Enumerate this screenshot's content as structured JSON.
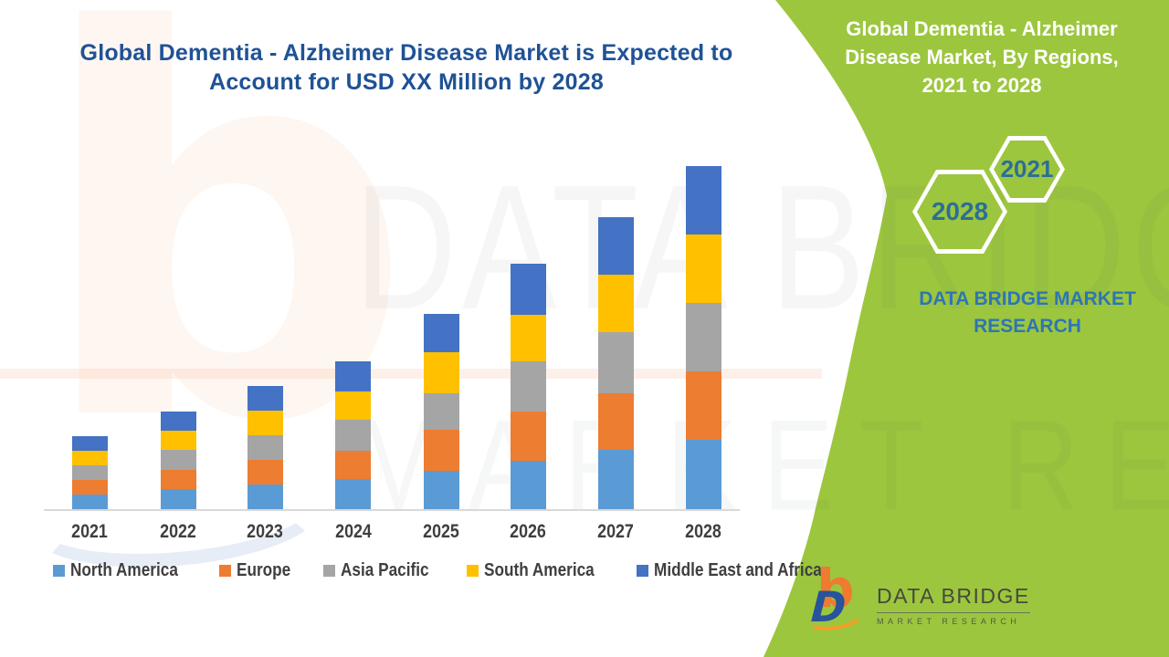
{
  "main_title": {
    "lines": [
      "Global Dementia - Alzheimer Disease Market is Expected to",
      "Account for USD XX Million by 2028"
    ],
    "color": "#1F5296"
  },
  "side_panel": {
    "background": "#9CC63E",
    "title_lines": [
      "Global Dementia - Alzheimer",
      "Disease Market, By Regions,",
      "2021 to 2028"
    ],
    "title_color": "#FFFFFF",
    "badges": [
      {
        "year": "2021"
      },
      {
        "year": "2028"
      }
    ],
    "badge_text_color": "#2C6E98",
    "brand_lines": [
      "DATA BRIDGE MARKET",
      "RESEARCH"
    ],
    "brand_color": "#2E75B6"
  },
  "watermark": {
    "line1": "DATA BRIDGE",
    "line2": "MARKET RESEARCH",
    "letter": "b"
  },
  "footer_logo": {
    "name": "DATA BRIDGE",
    "subname": "MARKET RESEARCH"
  },
  "chart_data": {
    "type": "bar",
    "stacked": true,
    "title": "Global Dementia - Alzheimer Disease Market, By Regions, 2021 to 2028",
    "categories": [
      "2021",
      "2022",
      "2023",
      "2024",
      "2025",
      "2026",
      "2027",
      "2028"
    ],
    "series": [
      {
        "name": "North America",
        "color": "#5B9BD5",
        "values": [
          16,
          22,
          27,
          33,
          42,
          53,
          65,
          76
        ]
      },
      {
        "name": "Europe",
        "color": "#ED7D31",
        "values": [
          16,
          21,
          27,
          31,
          45,
          54,
          62,
          75
        ]
      },
      {
        "name": "Asia Pacific",
        "color": "#A5A5A5",
        "values": [
          16,
          22,
          27,
          34,
          40,
          55,
          67,
          75
        ]
      },
      {
        "name": "South America",
        "color": "#FFC000",
        "values": [
          16,
          21,
          27,
          31,
          45,
          51,
          63,
          75
        ]
      },
      {
        "name": "Middle East and Africa",
        "color": "#4472C4",
        "values": [
          16,
          21,
          27,
          33,
          42,
          56,
          63,
          75
        ]
      }
    ],
    "stack_totals": [
      80,
      107,
      135,
      162,
      214,
      269,
      320,
      376
    ],
    "xlabel": "",
    "ylabel": "",
    "value_axis_note": "Y-axis hidden in source; values are relative units (USD XX Million not disclosed), estimated from bar heights.",
    "legend_position": "bottom",
    "gridlines": false,
    "y_axis_visible": false
  }
}
